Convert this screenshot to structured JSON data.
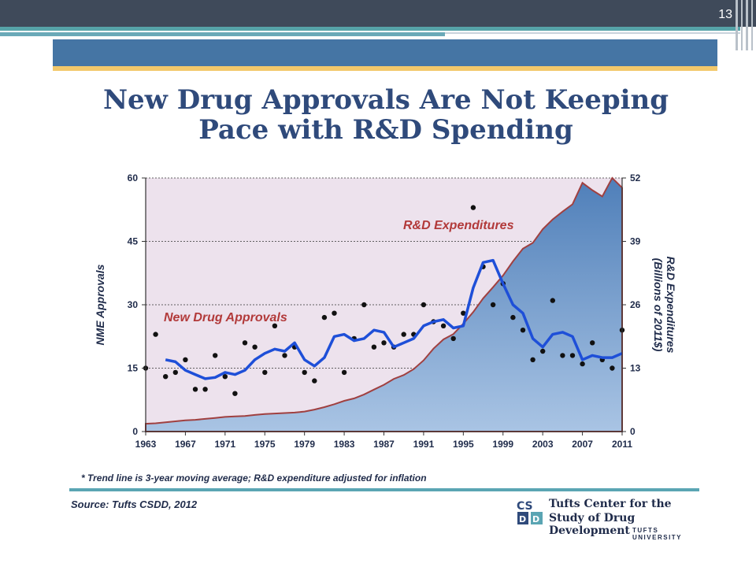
{
  "slide": {
    "number": "13"
  },
  "title_line1": "New Drug Approvals Are Not Keeping",
  "title_line2": "Pace with R&D Spending",
  "footnote": "* Trend line is 3-year moving average; R&D expenditure adjusted for inflation",
  "source": "Source: Tufts CSDD, 2012",
  "logo": {
    "mark_text": "CSDD",
    "line1": "Tufts Center for the",
    "line2": "Study of Drug Development",
    "line3": "TUFTS UNIVERSITY"
  },
  "colors": {
    "header_dark": "#3f4a5a",
    "band_blue": "#4575a4",
    "title": "#2f4a7b",
    "plot_bg": "#ede2ed",
    "trend_line": "#1e4fd8",
    "area_top": "#5b8cc2",
    "area_edge": "#a04040",
    "label_red": "#b23a3a"
  },
  "chart_data": {
    "type": "line",
    "ylabel": "NME Approvals",
    "y2label_line1": "R&D Expenditures",
    "y2label_line2": "(Billions of 2011$)",
    "ylim": [
      0,
      60
    ],
    "y2lim": [
      0,
      52
    ],
    "xlim": [
      1963,
      2011
    ],
    "xticks": [
      1963,
      1967,
      1971,
      1975,
      1979,
      1983,
      1987,
      1991,
      1995,
      1999,
      2003,
      2007,
      2011
    ],
    "yticks": [
      0,
      15,
      30,
      45,
      60
    ],
    "y2ticks": [
      0,
      13,
      26,
      39,
      52
    ],
    "grid": "horizontal dashed",
    "annotations": {
      "rd_label": "R&D Expenditures",
      "approvals_label": "New Drug Approvals"
    },
    "rd_expenditures": {
      "x": [
        1963,
        1964,
        1965,
        1966,
        1967,
        1968,
        1969,
        1970,
        1971,
        1972,
        1973,
        1974,
        1975,
        1976,
        1977,
        1978,
        1979,
        1980,
        1981,
        1982,
        1983,
        1984,
        1985,
        1986,
        1987,
        1988,
        1989,
        1990,
        1991,
        1992,
        1993,
        1994,
        1995,
        1996,
        1997,
        1998,
        1999,
        2000,
        2001,
        2002,
        2003,
        2004,
        2005,
        2006,
        2007,
        2008,
        2009,
        2010,
        2011
      ],
      "y": [
        1.6,
        1.7,
        1.9,
        2.1,
        2.3,
        2.4,
        2.6,
        2.8,
        3.0,
        3.1,
        3.2,
        3.4,
        3.6,
        3.7,
        3.8,
        3.9,
        4.1,
        4.5,
        5.0,
        5.6,
        6.3,
        6.8,
        7.6,
        8.6,
        9.6,
        10.8,
        11.6,
        12.8,
        14.6,
        17.0,
        18.9,
        20.0,
        22.1,
        24.5,
        27.3,
        29.6,
        32.0,
        34.9,
        37.5,
        38.7,
        41.5,
        43.5,
        45.1,
        46.6,
        51.0,
        49.5,
        48.2,
        52.0,
        50.0
      ]
    },
    "approvals_trend": {
      "x": [
        1965,
        1966,
        1967,
        1968,
        1969,
        1970,
        1971,
        1972,
        1973,
        1974,
        1975,
        1976,
        1977,
        1978,
        1979,
        1980,
        1981,
        1982,
        1983,
        1984,
        1985,
        1986,
        1987,
        1988,
        1989,
        1990,
        1991,
        1992,
        1993,
        1994,
        1995,
        1996,
        1997,
        1998,
        1999,
        2000,
        2001,
        2002,
        2003,
        2004,
        2005,
        2006,
        2007,
        2008,
        2009,
        2010,
        2011
      ],
      "y": [
        17,
        16.5,
        14.5,
        13.5,
        12.5,
        12.8,
        14,
        13.5,
        14.5,
        17,
        18.5,
        19.5,
        19,
        21,
        17,
        15.5,
        17.5,
        22.5,
        23,
        21.5,
        22,
        24,
        23.5,
        20,
        21,
        22,
        25,
        26,
        26.5,
        24.5,
        25,
        34,
        40,
        40.5,
        35,
        30,
        28,
        22,
        20,
        23,
        23.5,
        22.5,
        17,
        18,
        17.5,
        17.5,
        18.5
      ]
    },
    "approvals_points": {
      "x": [
        1963,
        1964,
        1965,
        1966,
        1967,
        1968,
        1969,
        1970,
        1971,
        1972,
        1973,
        1974,
        1975,
        1976,
        1977,
        1978,
        1979,
        1980,
        1981,
        1982,
        1983,
        1984,
        1985,
        1986,
        1987,
        1988,
        1989,
        1990,
        1991,
        1992,
        1993,
        1994,
        1995,
        1996,
        1997,
        1998,
        1999,
        2000,
        2001,
        2002,
        2003,
        2004,
        2005,
        2006,
        2007,
        2008,
        2009,
        2010,
        2011
      ],
      "y": [
        15,
        23,
        13,
        14,
        17,
        10,
        10,
        18,
        13,
        9,
        21,
        20,
        14,
        25,
        18,
        20,
        14,
        12,
        27,
        28,
        14,
        22,
        30,
        20,
        21,
        20,
        23,
        23,
        30,
        26,
        25,
        22,
        28,
        53,
        39,
        30,
        35,
        27,
        24,
        17,
        19,
        31,
        18,
        18,
        16,
        21,
        17,
        15,
        24
      ]
    }
  }
}
